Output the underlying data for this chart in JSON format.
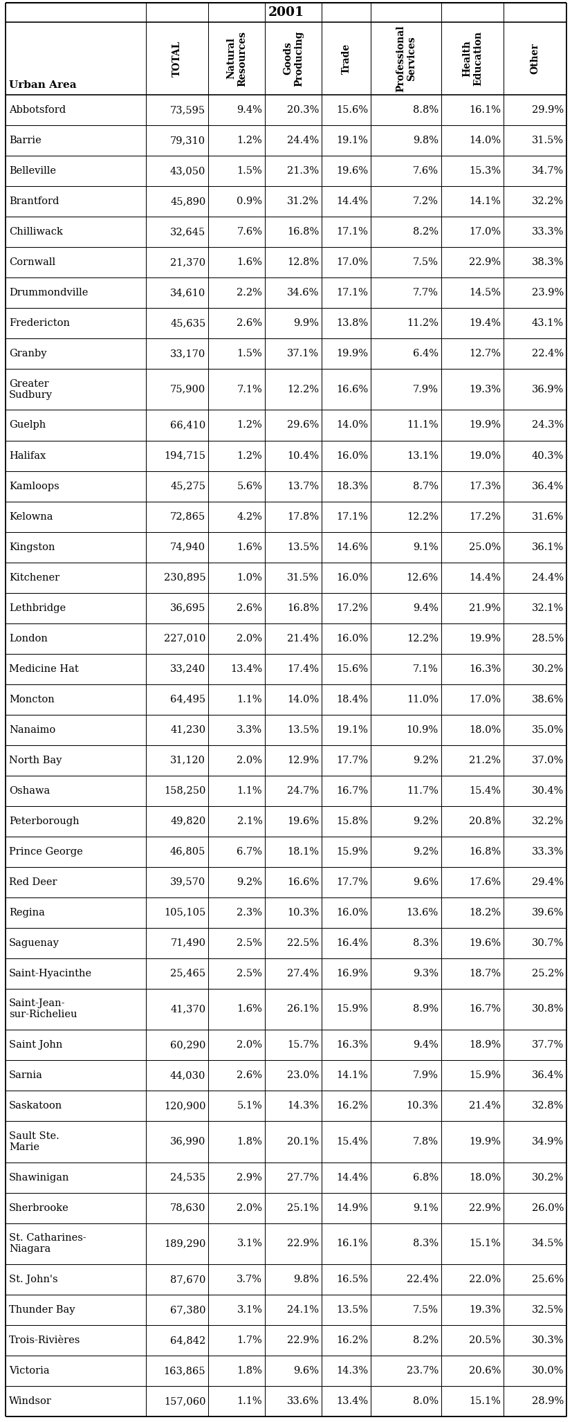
{
  "title": "2001",
  "columns": [
    "Urban Area",
    "TOTAL",
    "Natural\nResources",
    "Goods\nProducing",
    "Trade",
    "Professional\nServices",
    "Health\nEducation",
    "Other"
  ],
  "rows": [
    [
      "Abbotsford",
      "73,595",
      "9.4%",
      "20.3%",
      "15.6%",
      "8.8%",
      "16.1%",
      "29.9%"
    ],
    [
      "Barrie",
      "79,310",
      "1.2%",
      "24.4%",
      "19.1%",
      "9.8%",
      "14.0%",
      "31.5%"
    ],
    [
      "Belleville",
      "43,050",
      "1.5%",
      "21.3%",
      "19.6%",
      "7.6%",
      "15.3%",
      "34.7%"
    ],
    [
      "Brantford",
      "45,890",
      "0.9%",
      "31.2%",
      "14.4%",
      "7.2%",
      "14.1%",
      "32.2%"
    ],
    [
      "Chilliwack",
      "32,645",
      "7.6%",
      "16.8%",
      "17.1%",
      "8.2%",
      "17.0%",
      "33.3%"
    ],
    [
      "Cornwall",
      "21,370",
      "1.6%",
      "12.8%",
      "17.0%",
      "7.5%",
      "22.9%",
      "38.3%"
    ],
    [
      "Drummondville",
      "34,610",
      "2.2%",
      "34.6%",
      "17.1%",
      "7.7%",
      "14.5%",
      "23.9%"
    ],
    [
      "Fredericton",
      "45,635",
      "2.6%",
      "9.9%",
      "13.8%",
      "11.2%",
      "19.4%",
      "43.1%"
    ],
    [
      "Granby",
      "33,170",
      "1.5%",
      "37.1%",
      "19.9%",
      "6.4%",
      "12.7%",
      "22.4%"
    ],
    [
      "Greater\nSudbury",
      "75,900",
      "7.1%",
      "12.2%",
      "16.6%",
      "7.9%",
      "19.3%",
      "36.9%"
    ],
    [
      "Guelph",
      "66,410",
      "1.2%",
      "29.6%",
      "14.0%",
      "11.1%",
      "19.9%",
      "24.3%"
    ],
    [
      "Halifax",
      "194,715",
      "1.2%",
      "10.4%",
      "16.0%",
      "13.1%",
      "19.0%",
      "40.3%"
    ],
    [
      "Kamloops",
      "45,275",
      "5.6%",
      "13.7%",
      "18.3%",
      "8.7%",
      "17.3%",
      "36.4%"
    ],
    [
      "Kelowna",
      "72,865",
      "4.2%",
      "17.8%",
      "17.1%",
      "12.2%",
      "17.2%",
      "31.6%"
    ],
    [
      "Kingston",
      "74,940",
      "1.6%",
      "13.5%",
      "14.6%",
      "9.1%",
      "25.0%",
      "36.1%"
    ],
    [
      "Kitchener",
      "230,895",
      "1.0%",
      "31.5%",
      "16.0%",
      "12.6%",
      "14.4%",
      "24.4%"
    ],
    [
      "Lethbridge",
      "36,695",
      "2.6%",
      "16.8%",
      "17.2%",
      "9.4%",
      "21.9%",
      "32.1%"
    ],
    [
      "London",
      "227,010",
      "2.0%",
      "21.4%",
      "16.0%",
      "12.2%",
      "19.9%",
      "28.5%"
    ],
    [
      "Medicine Hat",
      "33,240",
      "13.4%",
      "17.4%",
      "15.6%",
      "7.1%",
      "16.3%",
      "30.2%"
    ],
    [
      "Moncton",
      "64,495",
      "1.1%",
      "14.0%",
      "18.4%",
      "11.0%",
      "17.0%",
      "38.6%"
    ],
    [
      "Nanaimo",
      "41,230",
      "3.3%",
      "13.5%",
      "19.1%",
      "10.9%",
      "18.0%",
      "35.0%"
    ],
    [
      "North Bay",
      "31,120",
      "2.0%",
      "12.9%",
      "17.7%",
      "9.2%",
      "21.2%",
      "37.0%"
    ],
    [
      "Oshawa",
      "158,250",
      "1.1%",
      "24.7%",
      "16.7%",
      "11.7%",
      "15.4%",
      "30.4%"
    ],
    [
      "Peterborough",
      "49,820",
      "2.1%",
      "19.6%",
      "15.8%",
      "9.2%",
      "20.8%",
      "32.2%"
    ],
    [
      "Prince George",
      "46,805",
      "6.7%",
      "18.1%",
      "15.9%",
      "9.2%",
      "16.8%",
      "33.3%"
    ],
    [
      "Red Deer",
      "39,570",
      "9.2%",
      "16.6%",
      "17.7%",
      "9.6%",
      "17.6%",
      "29.4%"
    ],
    [
      "Regina",
      "105,105",
      "2.3%",
      "10.3%",
      "16.0%",
      "13.6%",
      "18.2%",
      "39.6%"
    ],
    [
      "Saguenay",
      "71,490",
      "2.5%",
      "22.5%",
      "16.4%",
      "8.3%",
      "19.6%",
      "30.7%"
    ],
    [
      "Saint-Hyacinthe",
      "25,465",
      "2.5%",
      "27.4%",
      "16.9%",
      "9.3%",
      "18.7%",
      "25.2%"
    ],
    [
      "Saint-Jean-\nsur-Richelieu",
      "41,370",
      "1.6%",
      "26.1%",
      "15.9%",
      "8.9%",
      "16.7%",
      "30.8%"
    ],
    [
      "Saint John",
      "60,290",
      "2.0%",
      "15.7%",
      "16.3%",
      "9.4%",
      "18.9%",
      "37.7%"
    ],
    [
      "Sarnia",
      "44,030",
      "2.6%",
      "23.0%",
      "14.1%",
      "7.9%",
      "15.9%",
      "36.4%"
    ],
    [
      "Saskatoon",
      "120,900",
      "5.1%",
      "14.3%",
      "16.2%",
      "10.3%",
      "21.4%",
      "32.8%"
    ],
    [
      "Sault Ste.\nMarie",
      "36,990",
      "1.8%",
      "20.1%",
      "15.4%",
      "7.8%",
      "19.9%",
      "34.9%"
    ],
    [
      "Shawinigan",
      "24,535",
      "2.9%",
      "27.7%",
      "14.4%",
      "6.8%",
      "18.0%",
      "30.2%"
    ],
    [
      "Sherbrooke",
      "78,630",
      "2.0%",
      "25.1%",
      "14.9%",
      "9.1%",
      "22.9%",
      "26.0%"
    ],
    [
      "St. Catharines-\nNiagara",
      "189,290",
      "3.1%",
      "22.9%",
      "16.1%",
      "8.3%",
      "15.1%",
      "34.5%"
    ],
    [
      "St. John's",
      "87,670",
      "3.7%",
      "9.8%",
      "16.5%",
      "22.4%",
      "22.0%",
      "25.6%"
    ],
    [
      "Thunder Bay",
      "67,380",
      "3.1%",
      "24.1%",
      "13.5%",
      "7.5%",
      "19.3%",
      "32.5%"
    ],
    [
      "Trois-Rivières",
      "64,842",
      "1.7%",
      "22.9%",
      "16.2%",
      "8.2%",
      "20.5%",
      "30.3%"
    ],
    [
      "Victoria",
      "163,865",
      "1.8%",
      "9.6%",
      "14.3%",
      "23.7%",
      "20.6%",
      "30.0%"
    ],
    [
      "Windsor",
      "157,060",
      "1.1%",
      "33.6%",
      "13.4%",
      "8.0%",
      "15.1%",
      "28.9%"
    ]
  ],
  "multiline_rows": [
    9,
    29,
    33,
    36
  ],
  "bg_color": "#ffffff",
  "text_color": "#000000",
  "font_size": 10.5,
  "header_font_size": 10.0,
  "title_font_size": 13.5
}
